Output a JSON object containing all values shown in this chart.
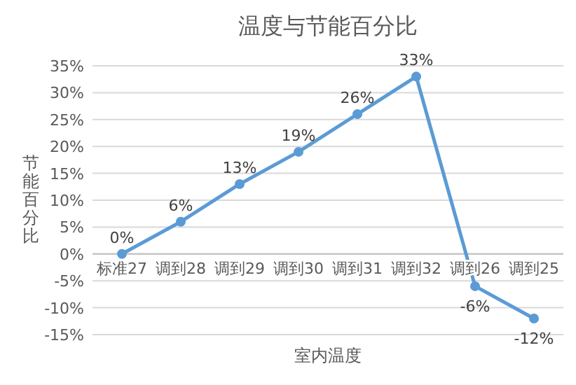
{
  "chart_data": {
    "type": "line",
    "title": "温度与节能百分比",
    "xlabel": "室内温度",
    "ylabel": "节能百分比",
    "categories": [
      "标准27",
      "调到28",
      "调到29",
      "调到30",
      "调到31",
      "调到32",
      "调到26",
      "调到25"
    ],
    "series": [
      {
        "color": "#5b9bd5",
        "values": [
          0,
          6,
          13,
          19,
          26,
          33,
          -6,
          -12
        ],
        "value_labels": [
          "0%",
          "6%",
          "13%",
          "19%",
          "26%",
          "33%",
          "-6%",
          "-12%"
        ]
      }
    ],
    "ylim": [
      -15,
      35
    ],
    "yticks": [
      {
        "value": -15,
        "label": "-15%"
      },
      {
        "value": -10,
        "label": "-10%"
      },
      {
        "value": -5,
        "label": "-5%"
      },
      {
        "value": 0,
        "label": "0%"
      },
      {
        "value": 5,
        "label": "5%"
      },
      {
        "value": 10,
        "label": "10%"
      },
      {
        "value": 15,
        "label": "15%"
      },
      {
        "value": 20,
        "label": "20%"
      },
      {
        "value": 25,
        "label": "25%"
      },
      {
        "value": 30,
        "label": "30%"
      },
      {
        "value": 35,
        "label": "35%"
      }
    ],
    "grid": "y",
    "marker": "circle",
    "line_style": "solid"
  }
}
